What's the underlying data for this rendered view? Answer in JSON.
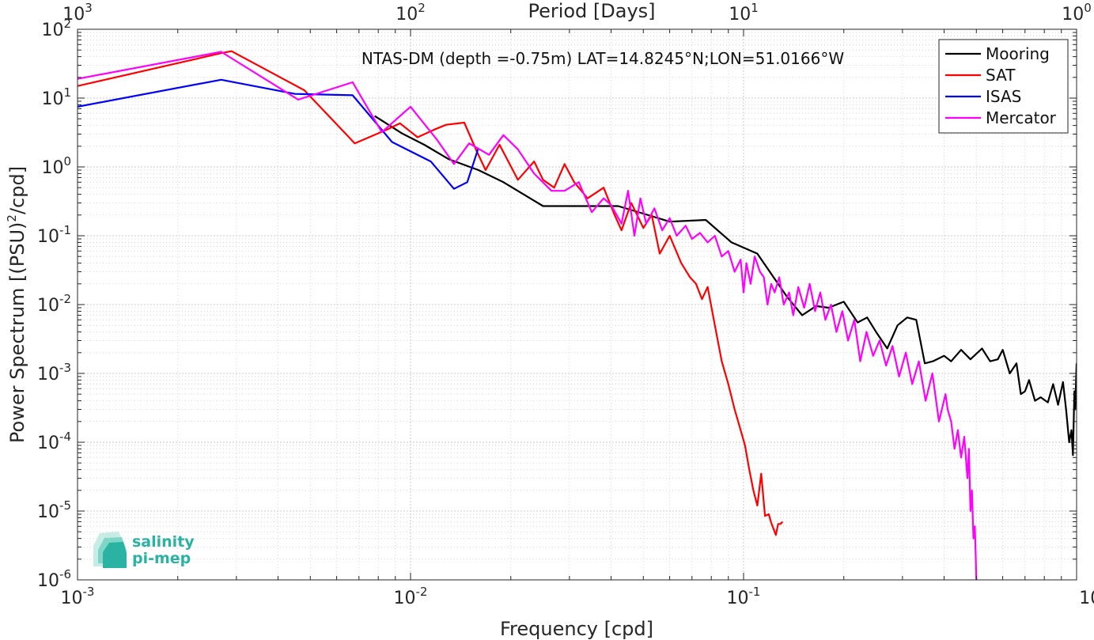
{
  "logo": {
    "line1": "salinity",
    "line2": "pi-mep"
  },
  "chart_data": {
    "type": "line",
    "title": "NTAS-DM (depth =-0.75m) LAT=14.8245°N;LON=51.0166°W",
    "xlabel": "Frequency [cpd]",
    "ylabel_main": "Power Spectrum [(PSU)",
    "ylabel_sup": "2",
    "ylabel_tail": "/cpd]",
    "top_xlabel": "Period [Days]",
    "xscale": "log",
    "yscale": "log",
    "xlim": [
      0.001,
      1
    ],
    "ylim": [
      1e-06,
      100
    ],
    "grid": true,
    "legend_position": "top-right",
    "x_ticks": [
      {
        "value": 0.001,
        "base": "10",
        "exp": "-3"
      },
      {
        "value": 0.01,
        "base": "10",
        "exp": "-2"
      },
      {
        "value": 0.1,
        "base": "10",
        "exp": "-1"
      },
      {
        "value": 1,
        "base": "10",
        "exp": "0"
      }
    ],
    "y_ticks": [
      {
        "value": 1e-06,
        "base": "10",
        "exp": "-6"
      },
      {
        "value": 1e-05,
        "base": "10",
        "exp": "-5"
      },
      {
        "value": 0.0001,
        "base": "10",
        "exp": "-4"
      },
      {
        "value": 0.001,
        "base": "10",
        "exp": "-3"
      },
      {
        "value": 0.01,
        "base": "10",
        "exp": "-2"
      },
      {
        "value": 0.1,
        "base": "10",
        "exp": "-1"
      },
      {
        "value": 1,
        "base": "10",
        "exp": "0"
      },
      {
        "value": 10,
        "base": "10",
        "exp": "1"
      },
      {
        "value": 100,
        "base": "10",
        "exp": "2"
      }
    ],
    "top_ticks": [
      {
        "value": 0.001,
        "base": "10",
        "exp": "3"
      },
      {
        "value": 0.01,
        "base": "10",
        "exp": "2"
      },
      {
        "value": 0.1,
        "base": "10",
        "exp": "1"
      },
      {
        "value": 1,
        "base": "10",
        "exp": "0"
      }
    ],
    "series": [
      {
        "name": "Mooring",
        "color": "#000000",
        "points": [
          [
            0.0078,
            5.5
          ],
          [
            0.0094,
            3.1
          ],
          [
            0.011,
            2.1
          ],
          [
            0.013,
            1.3
          ],
          [
            0.016,
            0.9
          ],
          [
            0.019,
            0.6
          ],
          [
            0.025,
            0.27
          ],
          [
            0.042,
            0.27
          ],
          [
            0.05,
            0.21
          ],
          [
            0.06,
            0.16
          ],
          [
            0.077,
            0.17
          ],
          [
            0.092,
            0.08
          ],
          [
            0.11,
            0.055
          ],
          [
            0.135,
            0.013
          ],
          [
            0.15,
            0.007
          ],
          [
            0.165,
            0.0095
          ],
          [
            0.18,
            0.009
          ],
          [
            0.2,
            0.011
          ],
          [
            0.22,
            0.0055
          ],
          [
            0.235,
            0.0065
          ],
          [
            0.25,
            0.004
          ],
          [
            0.27,
            0.0023
          ],
          [
            0.29,
            0.005
          ],
          [
            0.31,
            0.0065
          ],
          [
            0.33,
            0.006
          ],
          [
            0.35,
            0.0014
          ],
          [
            0.37,
            0.0015
          ],
          [
            0.4,
            0.0018
          ],
          [
            0.42,
            0.0015
          ],
          [
            0.45,
            0.0022
          ],
          [
            0.48,
            0.0016
          ],
          [
            0.52,
            0.0023
          ],
          [
            0.55,
            0.0015
          ],
          [
            0.58,
            0.0016
          ],
          [
            0.6,
            0.0022
          ],
          [
            0.63,
            0.001
          ],
          [
            0.66,
            0.0014
          ],
          [
            0.68,
            0.0005
          ],
          [
            0.7,
            0.00055
          ],
          [
            0.72,
            0.0008
          ],
          [
            0.75,
            0.0004
          ],
          [
            0.78,
            0.00045
          ],
          [
            0.82,
            0.00038
          ],
          [
            0.85,
            0.0007
          ],
          [
            0.88,
            0.00035
          ],
          [
            0.91,
            0.00075
          ],
          [
            0.93,
            0.0003
          ],
          [
            0.95,
            0.0001
          ],
          [
            0.965,
            0.00015
          ],
          [
            0.975,
            6.5e-05
          ],
          [
            0.985,
            0.00055
          ],
          [
            0.99,
            0.0003
          ],
          [
            1.0,
            0.0014
          ]
        ]
      },
      {
        "name": "SAT",
        "color": "#ff0000",
        "points": [
          [
            0.001,
            15
          ],
          [
            0.0027,
            45
          ],
          [
            0.0029,
            48
          ],
          [
            0.0048,
            13
          ],
          [
            0.0068,
            2.2
          ],
          [
            0.0085,
            3.5
          ],
          [
            0.0093,
            4.3
          ],
          [
            0.0105,
            2.7
          ],
          [
            0.0118,
            3.5
          ],
          [
            0.0128,
            4.1
          ],
          [
            0.0145,
            4.4
          ],
          [
            0.0158,
            1.7
          ],
          [
            0.0168,
            0.9
          ],
          [
            0.0185,
            2.1
          ],
          [
            0.021,
            0.65
          ],
          [
            0.0235,
            1.2
          ],
          [
            0.025,
            0.65
          ],
          [
            0.027,
            0.5
          ],
          [
            0.029,
            1.1
          ],
          [
            0.031,
            0.6
          ],
          [
            0.034,
            0.35
          ],
          [
            0.038,
            0.5
          ],
          [
            0.041,
            0.2
          ],
          [
            0.043,
            0.12
          ],
          [
            0.046,
            0.3
          ],
          [
            0.05,
            0.13
          ],
          [
            0.053,
            0.2
          ],
          [
            0.056,
            0.055
          ],
          [
            0.06,
            0.1
          ],
          [
            0.065,
            0.04
          ],
          [
            0.069,
            0.025
          ],
          [
            0.072,
            0.02
          ],
          [
            0.075,
            0.012
          ],
          [
            0.078,
            0.018
          ],
          [
            0.082,
            0.005
          ],
          [
            0.086,
            0.0015
          ],
          [
            0.09,
            0.0007
          ],
          [
            0.094,
            0.0003
          ],
          [
            0.098,
            0.00015
          ],
          [
            0.101,
            9e-05
          ],
          [
            0.104,
            4e-05
          ],
          [
            0.107,
            2e-05
          ],
          [
            0.11,
            1.2e-05
          ],
          [
            0.113,
            3.5e-05
          ],
          [
            0.116,
            8.5e-06
          ],
          [
            0.119,
            9e-06
          ],
          [
            0.121,
            6.8e-06
          ],
          [
            0.123,
            5.5e-06
          ],
          [
            0.125,
            4.5e-06
          ],
          [
            0.127,
            6.5e-06
          ],
          [
            0.129,
            6.5e-06
          ],
          [
            0.131,
            7e-06
          ]
        ]
      },
      {
        "name": "ISAS",
        "color": "#0000ff",
        "points": [
          [
            0.001,
            7.5
          ],
          [
            0.0027,
            18.5
          ],
          [
            0.0045,
            11.5
          ],
          [
            0.0067,
            11
          ],
          [
            0.0088,
            2.3
          ],
          [
            0.0115,
            1.2
          ],
          [
            0.0135,
            0.48
          ],
          [
            0.0148,
            0.6
          ],
          [
            0.016,
            1.9
          ]
        ]
      },
      {
        "name": "Mercator",
        "color": "#ff00ff",
        "points": [
          [
            0.001,
            19
          ],
          [
            0.0027,
            47
          ],
          [
            0.0046,
            9.5
          ],
          [
            0.0067,
            17
          ],
          [
            0.0082,
            3.2
          ],
          [
            0.01,
            7.5
          ],
          [
            0.012,
            2.5
          ],
          [
            0.0135,
            1.1
          ],
          [
            0.015,
            2.2
          ],
          [
            0.0172,
            1.5
          ],
          [
            0.019,
            2.9
          ],
          [
            0.021,
            1.8
          ],
          [
            0.0235,
            0.8
          ],
          [
            0.0265,
            0.45
          ],
          [
            0.029,
            0.45
          ],
          [
            0.032,
            0.6
          ],
          [
            0.035,
            0.22
          ],
          [
            0.038,
            0.35
          ],
          [
            0.04,
            0.28
          ],
          [
            0.043,
            0.15
          ],
          [
            0.045,
            0.45
          ],
          [
            0.047,
            0.1
          ],
          [
            0.049,
            0.35
          ],
          [
            0.051,
            0.15
          ],
          [
            0.054,
            0.25
          ],
          [
            0.057,
            0.12
          ],
          [
            0.06,
            0.18
          ],
          [
            0.063,
            0.1
          ],
          [
            0.067,
            0.14
          ],
          [
            0.07,
            0.09
          ],
          [
            0.074,
            0.11
          ],
          [
            0.078,
            0.08
          ],
          [
            0.082,
            0.1
          ],
          [
            0.086,
            0.05
          ],
          [
            0.09,
            0.06
          ],
          [
            0.094,
            0.03
          ],
          [
            0.098,
            0.045
          ],
          [
            0.1,
            0.015
          ],
          [
            0.102,
            0.04
          ],
          [
            0.105,
            0.02
          ],
          [
            0.108,
            0.05
          ],
          [
            0.112,
            0.03
          ],
          [
            0.115,
            0.025
          ],
          [
            0.118,
            0.01
          ],
          [
            0.121,
            0.02
          ],
          [
            0.124,
            0.015
          ],
          [
            0.128,
            0.025
          ],
          [
            0.132,
            0.01
          ],
          [
            0.137,
            0.015
          ],
          [
            0.141,
            0.007
          ],
          [
            0.146,
            0.018
          ],
          [
            0.152,
            0.009
          ],
          [
            0.158,
            0.02
          ],
          [
            0.164,
            0.008
          ],
          [
            0.17,
            0.015
          ],
          [
            0.176,
            0.006
          ],
          [
            0.183,
            0.01
          ],
          [
            0.19,
            0.004
          ],
          [
            0.198,
            0.008
          ],
          [
            0.206,
            0.003
          ],
          [
            0.215,
            0.006
          ],
          [
            0.224,
            0.0015
          ],
          [
            0.234,
            0.004
          ],
          [
            0.245,
            0.0018
          ],
          [
            0.256,
            0.003
          ],
          [
            0.268,
            0.0013
          ],
          [
            0.28,
            0.0025
          ],
          [
            0.293,
            0.0009
          ],
          [
            0.307,
            0.002
          ],
          [
            0.321,
            0.0007
          ],
          [
            0.336,
            0.0015
          ],
          [
            0.352,
            0.0004
          ],
          [
            0.369,
            0.001
          ],
          [
            0.386,
            0.0002
          ],
          [
            0.404,
            0.0005
          ],
          [
            0.41,
            0.0003
          ],
          [
            0.42,
            0.0002
          ],
          [
            0.43,
            8e-05
          ],
          [
            0.44,
            0.00015
          ],
          [
            0.45,
            6e-05
          ],
          [
            0.46,
            0.00012
          ],
          [
            0.47,
            3e-05
          ],
          [
            0.475,
            8e-05
          ],
          [
            0.48,
            1e-05
          ],
          [
            0.485,
            2e-05
          ],
          [
            0.49,
            4e-06
          ],
          [
            0.495,
            6e-06
          ],
          [
            0.5,
            1e-06
          ]
        ]
      }
    ]
  }
}
